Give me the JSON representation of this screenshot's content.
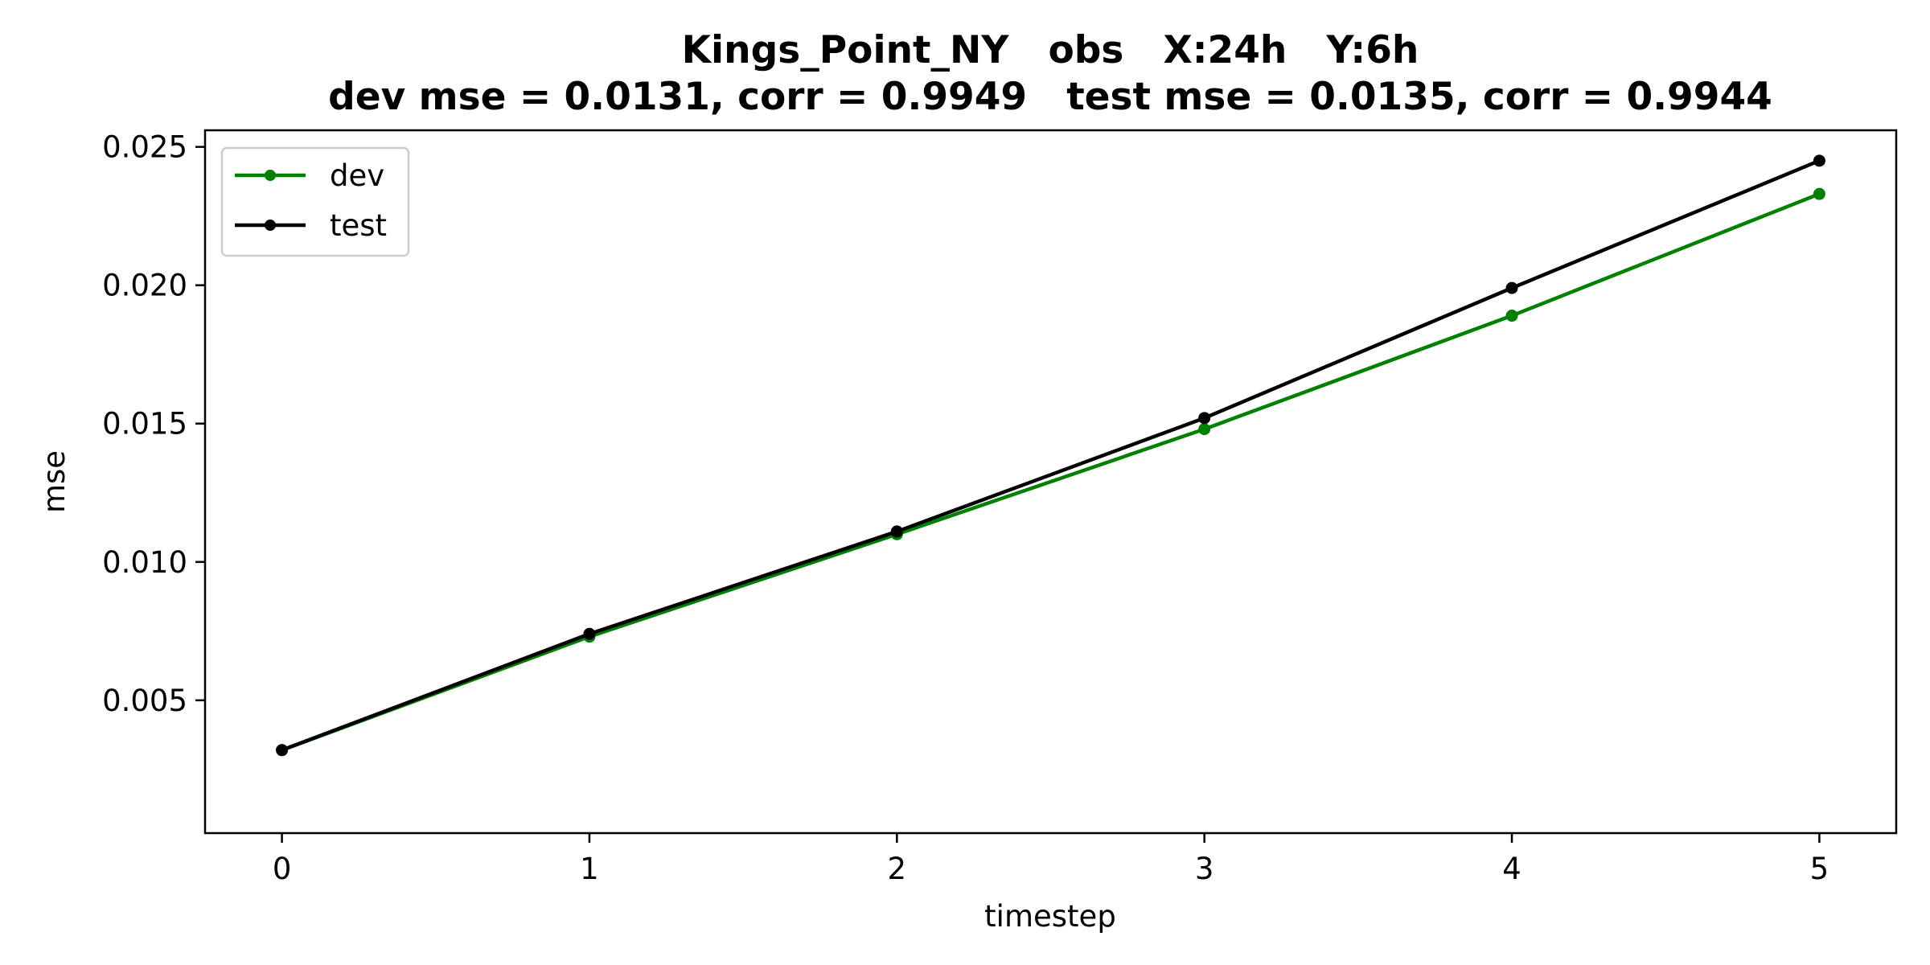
{
  "chart_data": {
    "type": "line",
    "title_line1": "Kings_Point_NY   obs   X:24h   Y:6h",
    "title_line2": "dev mse = 0.0131, corr = 0.9949   test mse = 0.0135, corr = 0.9944",
    "xlabel": "timestep",
    "ylabel": "mse",
    "x": [
      0,
      1,
      2,
      3,
      4,
      5
    ],
    "xlim": [
      -0.25,
      5.25
    ],
    "ylim": [
      0.0002,
      0.0256
    ],
    "xticks": [
      0,
      1,
      2,
      3,
      4,
      5
    ],
    "xtick_labels": [
      "0",
      "1",
      "2",
      "3",
      "4",
      "5"
    ],
    "yticks": [
      0.005,
      0.01,
      0.015,
      0.02,
      0.025
    ],
    "ytick_labels": [
      "0.005",
      "0.010",
      "0.015",
      "0.020",
      "0.025"
    ],
    "grid": false,
    "legend_position": "top-left",
    "series": [
      {
        "name": "dev",
        "color": "#008000",
        "marker": "circle",
        "values": [
          0.0032,
          0.0073,
          0.011,
          0.0148,
          0.0189,
          0.0233
        ]
      },
      {
        "name": "test",
        "color": "#000000",
        "marker": "circle",
        "values": [
          0.0032,
          0.0074,
          0.0111,
          0.0152,
          0.0199,
          0.0245
        ]
      }
    ]
  }
}
